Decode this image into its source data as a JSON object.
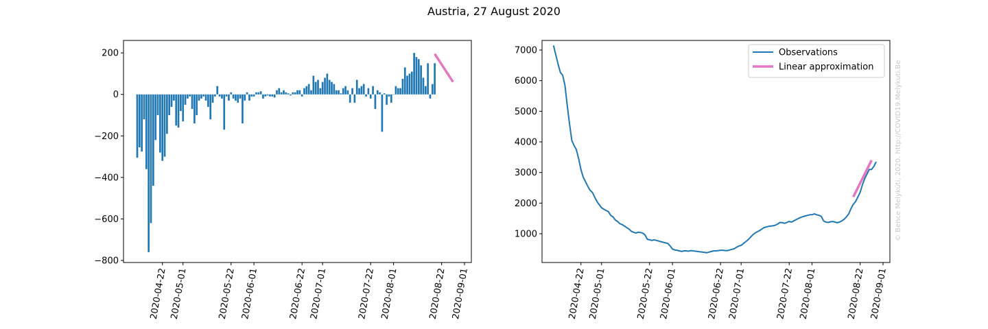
{
  "figure_title": "Austria, 27 August 2020",
  "credit": "© Bence Melykúti, 2020. http://COVID19.Melykuti.Be",
  "colors": {
    "bars": "#1f77b4",
    "observations": "#1f77b4",
    "linear": "#e377c2"
  },
  "chart_data": [
    {
      "type": "bar",
      "title": "",
      "xlabel": "",
      "ylabel": "",
      "x_start": "2020-04-11",
      "ylim": [
        -810,
        260
      ],
      "yticks": [
        200,
        0,
        -200,
        -400,
        -600,
        -800
      ],
      "ytick_labels": [
        "200",
        "0",
        "−200",
        "−400",
        "−600",
        "−800"
      ],
      "xticks": [
        "2020-04-22",
        "2020-05-01",
        "2020-05-22",
        "2020-06-01",
        "2020-06-22",
        "2020-07-01",
        "2020-07-22",
        "2020-08-01",
        "2020-08-22",
        "2020-09-01"
      ],
      "values": [
        -305,
        -255,
        -275,
        -120,
        -360,
        -760,
        -620,
        -440,
        -220,
        -100,
        -280,
        -320,
        -300,
        -190,
        -100,
        -60,
        -30,
        -150,
        -160,
        -80,
        -130,
        -50,
        -20,
        -10,
        -70,
        -140,
        -100,
        -30,
        -20,
        -10,
        -30,
        -60,
        -120,
        -40,
        -10,
        40,
        -10,
        -20,
        -170,
        -10,
        -30,
        10,
        -20,
        -30,
        -40,
        -20,
        -140,
        -30,
        10,
        -30,
        -10,
        -10,
        10,
        10,
        15,
        -20,
        -10,
        -5,
        -10,
        -10,
        -15,
        20,
        30,
        10,
        20,
        10,
        5,
        -5,
        10,
        10,
        20,
        20,
        -10,
        30,
        40,
        50,
        20,
        90,
        60,
        70,
        30,
        60,
        80,
        100,
        70,
        60,
        50,
        20,
        20,
        5,
        30,
        40,
        20,
        -40,
        30,
        -40,
        70,
        30,
        40,
        50,
        -10,
        30,
        -20,
        40,
        -70,
        20,
        10,
        -180,
        5,
        -50,
        -10,
        -40,
        0,
        40,
        30,
        30,
        75,
        130,
        90,
        100,
        110,
        200,
        180,
        170,
        140,
        80,
        40,
        150,
        -20,
        50,
        150
      ],
      "linear_approximation": {
        "x": [
          "2020-08-19",
          "2020-08-27"
        ],
        "y": [
          195,
          60
        ]
      }
    },
    {
      "type": "line",
      "title": "",
      "xlabel": "",
      "ylabel": "",
      "x_start": "2020-04-10",
      "ylim": [
        0,
        7500
      ],
      "yticks": [
        1000,
        2000,
        3000,
        4000,
        5000,
        6000,
        7000
      ],
      "ytick_labels": [
        "1000",
        "2000",
        "3000",
        "4000",
        "5000",
        "6000",
        "7000"
      ],
      "xticks": [
        "2020-04-22",
        "2020-05-01",
        "2020-05-22",
        "2020-06-01",
        "2020-06-22",
        "2020-07-01",
        "2020-07-22",
        "2020-08-01",
        "2020-08-22",
        "2020-09-01"
      ],
      "legend_position": "top-right",
      "series": [
        {
          "name": "Observations",
          "values": [
            7150,
            6850,
            6550,
            6270,
            6180,
            5850,
            5200,
            4600,
            4050,
            3880,
            3750,
            3450,
            3100,
            2850,
            2700,
            2550,
            2420,
            2350,
            2200,
            2050,
            1950,
            1850,
            1800,
            1760,
            1720,
            1600,
            1550,
            1450,
            1400,
            1330,
            1300,
            1250,
            1200,
            1150,
            1080,
            1050,
            1020,
            1050,
            1040,
            1020,
            960,
            820,
            800,
            780,
            800,
            780,
            760,
            740,
            720,
            700,
            680,
            600,
            500,
            470,
            460,
            440,
            420,
            440,
            440,
            430,
            450,
            440,
            430,
            420,
            410,
            400,
            390,
            380,
            400,
            420,
            440,
            440,
            450,
            460,
            460,
            450,
            450,
            470,
            490,
            510,
            560,
            600,
            620,
            680,
            740,
            800,
            880,
            960,
            1020,
            1060,
            1100,
            1150,
            1200,
            1220,
            1240,
            1250,
            1260,
            1280,
            1320,
            1370,
            1360,
            1340,
            1370,
            1400,
            1380,
            1420,
            1460,
            1500,
            1530,
            1560,
            1580,
            1600,
            1620,
            1620,
            1650,
            1620,
            1600,
            1570,
            1420,
            1380,
            1370,
            1390,
            1400,
            1380,
            1360,
            1380,
            1420,
            1470,
            1550,
            1650,
            1820,
            1960,
            2050,
            2200,
            2350,
            2600,
            2800,
            2950,
            3100,
            3100,
            3200,
            3350
          ]
        },
        {
          "name": "Linear approximation",
          "x": [
            "2020-08-19",
            "2020-08-27"
          ],
          "y": [
            2200,
            3400
          ]
        }
      ]
    }
  ]
}
